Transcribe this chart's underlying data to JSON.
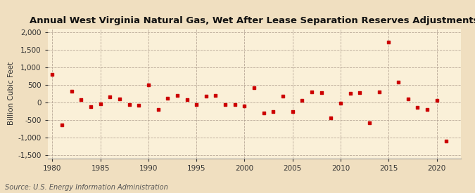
{
  "title": "Annual West Virginia Natural Gas, Wet After Lease Separation Reserves Adjustments",
  "ylabel": "Billion Cubic Feet",
  "source": "Source: U.S. Energy Information Administration",
  "background_color": "#f0dfc0",
  "plot_background_color": "#faf0d8",
  "marker_color": "#cc0000",
  "xlim": [
    1979.5,
    2022.5
  ],
  "ylim": [
    -1600,
    2100
  ],
  "yticks": [
    -1500,
    -1000,
    -500,
    0,
    500,
    1000,
    1500,
    2000
  ],
  "xticks": [
    1980,
    1985,
    1990,
    1995,
    2000,
    2005,
    2010,
    2015,
    2020
  ],
  "years": [
    1980,
    1981,
    1982,
    1983,
    1984,
    1985,
    1986,
    1987,
    1988,
    1989,
    1990,
    1991,
    1992,
    1993,
    1994,
    1995,
    1996,
    1997,
    1998,
    1999,
    2000,
    2001,
    2002,
    2003,
    2004,
    2005,
    2006,
    2007,
    2008,
    2009,
    2010,
    2011,
    2012,
    2013,
    2014,
    2015,
    2016,
    2017,
    2018,
    2019,
    2020,
    2021
  ],
  "values": [
    800,
    -650,
    320,
    80,
    -130,
    -50,
    160,
    100,
    -70,
    -80,
    490,
    -200,
    120,
    190,
    80,
    -70,
    180,
    200,
    -60,
    -70,
    -100,
    420,
    -300,
    -270,
    170,
    -270,
    50,
    290,
    270,
    -450,
    -20,
    260,
    280,
    -580,
    300,
    1720,
    580,
    90,
    -150,
    -200,
    60,
    -1100
  ],
  "title_fontsize": 9.5,
  "label_fontsize": 7.5,
  "tick_fontsize": 7.5,
  "source_fontsize": 7
}
